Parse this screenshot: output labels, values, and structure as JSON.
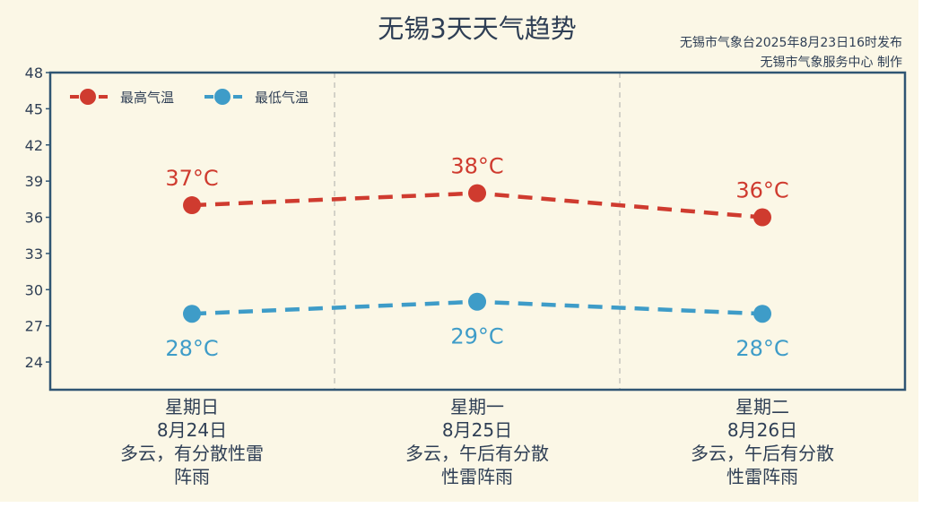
{
  "header": {
    "title": "无锡3天天气趋势",
    "credit_line1": "无锡市气象台2025年8月23日16时发布",
    "credit_line2": "无锡市气象服务中心  制作"
  },
  "colors": {
    "high": "#cf3b2f",
    "low": "#3e9cc8",
    "frame": "#2f5573",
    "text": "#2f3f55",
    "background": "#fbf7e6"
  },
  "chart_data": {
    "type": "line",
    "y_ticks": [
      24,
      27,
      30,
      33,
      36,
      39,
      42,
      45,
      48
    ],
    "ylim": [
      21.7,
      48
    ],
    "grid": false,
    "legend_position": "top-left",
    "categories": [
      "星期日",
      "星期一",
      "星期二"
    ],
    "dates": [
      "8月24日",
      "8月25日",
      "8月26日"
    ],
    "weather": [
      [
        "多云，有分散性雷",
        "阵雨"
      ],
      [
        "多云，午后有分散",
        "性雷阵雨"
      ],
      [
        "多云，午后有分散",
        "性雷阵雨"
      ]
    ],
    "series": [
      {
        "name": "最高气温",
        "values": [
          37,
          38,
          36
        ],
        "labels": [
          "37°C",
          "38°C",
          "36°C"
        ]
      },
      {
        "name": "最低气温",
        "values": [
          28,
          29,
          28
        ],
        "labels": [
          "28°C",
          "29°C",
          "28°C"
        ]
      }
    ]
  }
}
